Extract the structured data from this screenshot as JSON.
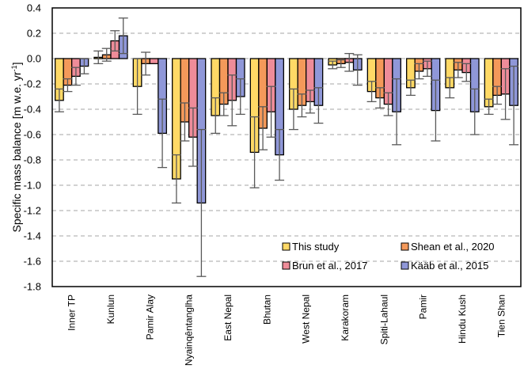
{
  "chart_data": {
    "type": "bar",
    "title": "",
    "xlabel": "",
    "ylabel": "Specific mass balance [m w.e. yr",
    "ylabel_superscript": "-1",
    "ylabel_suffix": "]",
    "ylim": [
      -1.8,
      0.4
    ],
    "yticks": [
      0.4,
      0.2,
      0.0,
      -0.2,
      -0.4,
      -0.6,
      -0.8,
      -1.0,
      -1.2,
      -1.4,
      -1.6,
      -1.8
    ],
    "ytick_labels": [
      "0.4",
      "0.2",
      "0.0",
      "-0.2",
      "-0.4",
      "-0.6",
      "-0.8",
      "-1.0",
      "-1.2",
      "-1.4",
      "-1.6",
      "-1.8"
    ],
    "grid": "horizontal dashed",
    "legend_position": "bottom-right",
    "categories": [
      "Inner TP",
      "Kunlun",
      "Pamir Alay",
      "Nyainqêntanglha",
      "East Nepal",
      "Bhutan",
      "West Nepal",
      "Karakoram",
      "Spiti-Lahaul",
      "Pamir",
      "Hindu Kush",
      "Tien Shan"
    ],
    "series": [
      {
        "name": "This study",
        "color": "#FFD966",
        "values": [
          -0.33,
          0.01,
          -0.22,
          -0.95,
          -0.45,
          -0.74,
          -0.4,
          -0.05,
          -0.26,
          -0.23,
          -0.23,
          -0.38
        ],
        "errors": [
          0.09,
          0.05,
          0.22,
          0.19,
          0.14,
          0.28,
          0.16,
          0.03,
          0.08,
          0.06,
          0.08,
          0.06
        ]
      },
      {
        "name": "Shean et al., 2020",
        "color": "#F4995A",
        "values": [
          -0.21,
          0.03,
          -0.04,
          -0.5,
          -0.36,
          -0.55,
          -0.37,
          -0.04,
          -0.31,
          -0.1,
          -0.09,
          -0.29
        ],
        "errors": [
          0.05,
          0.05,
          0.09,
          0.15,
          0.09,
          0.17,
          0.09,
          0.03,
          0.08,
          0.06,
          0.06,
          0.07
        ]
      },
      {
        "name": "Brun et al., 2017",
        "color": "#EE8C99",
        "values": [
          -0.14,
          0.14,
          -0.04,
          -0.62,
          -0.33,
          -0.42,
          -0.34,
          -0.03,
          -0.36,
          -0.08,
          -0.11,
          -0.28
        ],
        "errors": [
          0.07,
          0.08,
          0.0,
          0.23,
          0.2,
          0.2,
          0.09,
          0.07,
          0.09,
          0.06,
          0.07,
          0.2
        ]
      },
      {
        "name": "Kääb et al., 2015",
        "color": "#8F97D8",
        "values": [
          -0.06,
          0.18,
          -0.59,
          -1.14,
          -0.3,
          -0.76,
          -0.37,
          -0.09,
          -0.42,
          -0.41,
          -0.42,
          -0.37
        ],
        "errors": [
          0.06,
          0.14,
          0.27,
          0.58,
          0.14,
          0.2,
          0.14,
          0.12,
          0.26,
          0.24,
          0.18,
          0.31
        ]
      }
    ]
  }
}
